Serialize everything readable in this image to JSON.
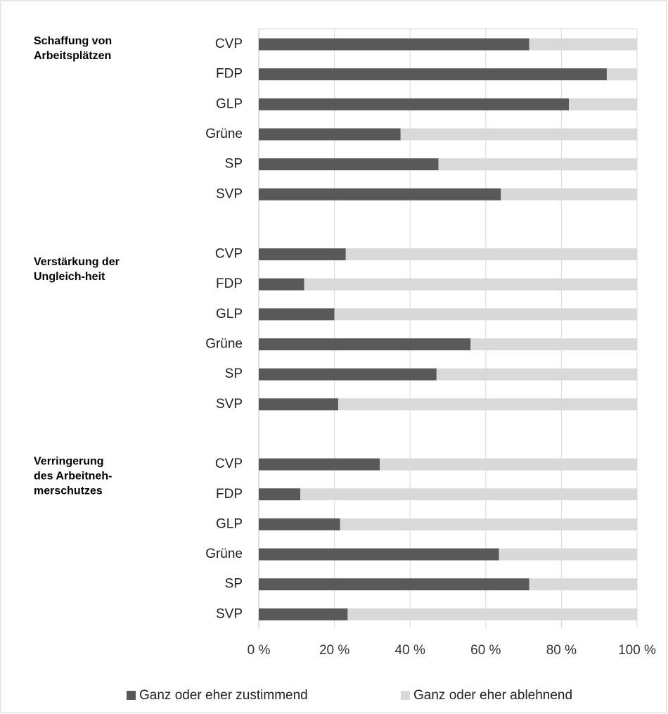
{
  "chart_data": {
    "type": "stacked-bar-horizontal",
    "groups": [
      {
        "label": [
          "Schaffung von",
          "Arbeitsplätzen"
        ],
        "categories": [
          "CVP",
          "FDP",
          "GLP",
          "Grüne",
          "SP",
          "SVP"
        ]
      },
      {
        "label": [
          "Verstärkung der",
          "Ungleich-heit"
        ],
        "categories": [
          "CVP",
          "FDP",
          "GLP",
          "Grüne",
          "SP",
          "SVP"
        ]
      },
      {
        "label": [
          "Verringerung",
          "des Arbeitneh-",
          "merschutzes"
        ],
        "categories": [
          "CVP",
          "FDP",
          "GLP",
          "Grüne",
          "SP",
          "SVP"
        ]
      }
    ],
    "series": [
      {
        "name": "Ganz oder eher zustimmend",
        "color": "#595959",
        "values": [
          71.5,
          92,
          82,
          37.5,
          47.5,
          64,
          23,
          12,
          20,
          56,
          47,
          21,
          32,
          11,
          21.5,
          63.5,
          71.5,
          23.5
        ]
      },
      {
        "name": "Ganz oder eher ablehnend",
        "color": "#d9d9d9",
        "values": [
          28.5,
          8,
          18,
          62.5,
          52.5,
          36,
          77,
          88,
          80,
          44,
          53,
          79,
          68,
          89,
          78.5,
          36.5,
          28.5,
          76.5
        ]
      }
    ],
    "xlim": [
      0,
      100
    ],
    "xticks": [
      {
        "value": 0,
        "label": "0 %"
      },
      {
        "value": 20,
        "label": "20 %"
      },
      {
        "value": 40,
        "label": "40 %"
      },
      {
        "value": 60,
        "label": "60 %"
      },
      {
        "value": 80,
        "label": "80 %"
      },
      {
        "value": 100,
        "label": "100 %"
      }
    ],
    "grid": true,
    "legend": "bottom"
  }
}
